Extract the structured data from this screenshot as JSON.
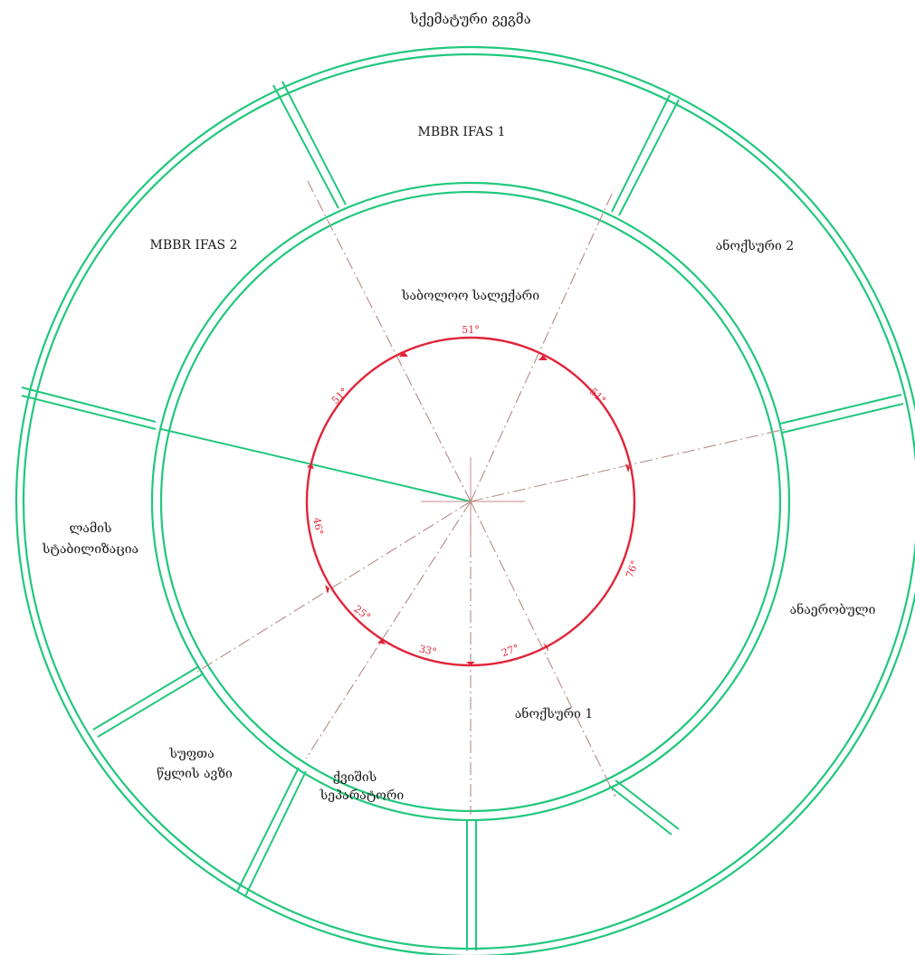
{
  "title": "სქემატური გეგმა",
  "colors": {
    "walls": "#21c77d",
    "dimension": "#e0253a",
    "centerline": "#b58b86"
  },
  "inner_zone": {
    "name": "საბოლოო სალექარი"
  },
  "outer_zones": [
    {
      "id": "mbbr-ifas-1",
      "lines": [
        "MBBR IFAS 1"
      ]
    },
    {
      "id": "anoxic-2",
      "lines": [
        "ანოქსური 2"
      ]
    },
    {
      "id": "anaerobic",
      "lines": [
        "ანაერობული"
      ]
    },
    {
      "id": "anoxic-1",
      "lines": [
        "ანოქსური 1"
      ]
    },
    {
      "id": "sand-separator",
      "lines": [
        "ქვიშის",
        "სეპარატორი"
      ]
    },
    {
      "id": "clean-water-tank",
      "lines": [
        "სუფთა",
        "წყლის ავზი"
      ]
    },
    {
      "id": "sludge-stabilization",
      "lines": [
        "ლამის",
        "სტაბილიზაცია"
      ]
    },
    {
      "id": "mbbr-ifas-2",
      "lines": [
        "MBBR IFAS 2"
      ]
    }
  ],
  "angles": [
    {
      "id": "top",
      "label": "51°"
    },
    {
      "id": "upper-right",
      "label": "51°"
    },
    {
      "id": "right",
      "label": "76°"
    },
    {
      "id": "lower-right",
      "label": "27°"
    },
    {
      "id": "bottom",
      "label": "33°"
    },
    {
      "id": "lower-left",
      "label": "25°"
    },
    {
      "id": "left",
      "label": "46°"
    },
    {
      "id": "upper-left",
      "label": "51°"
    }
  ]
}
